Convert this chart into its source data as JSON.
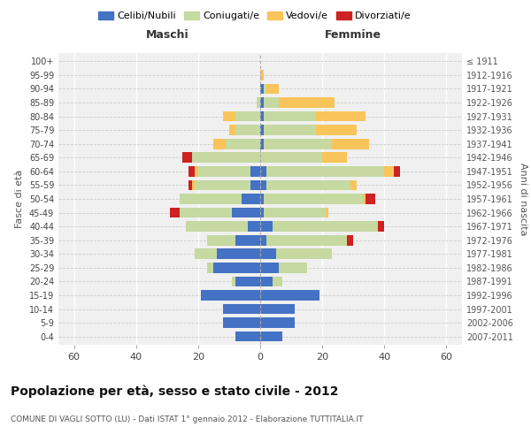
{
  "age_groups": [
    "100+",
    "95-99",
    "90-94",
    "85-89",
    "80-84",
    "75-79",
    "70-74",
    "65-69",
    "60-64",
    "55-59",
    "50-54",
    "45-49",
    "40-44",
    "35-39",
    "30-34",
    "25-29",
    "20-24",
    "15-19",
    "10-14",
    "5-9",
    "0-4"
  ],
  "birth_years": [
    "≤ 1911",
    "1912-1916",
    "1917-1921",
    "1922-1926",
    "1927-1931",
    "1932-1936",
    "1937-1941",
    "1942-1946",
    "1947-1951",
    "1952-1956",
    "1957-1961",
    "1962-1966",
    "1967-1971",
    "1972-1976",
    "1977-1981",
    "1982-1986",
    "1987-1991",
    "1992-1996",
    "1997-2001",
    "2002-2006",
    "2007-2011"
  ],
  "males": {
    "celibi": [
      0,
      0,
      0,
      0,
      0,
      0,
      0,
      0,
      3,
      3,
      6,
      9,
      4,
      8,
      14,
      15,
      8,
      19,
      12,
      12,
      8
    ],
    "coniugati": [
      0,
      0,
      0,
      1,
      8,
      8,
      11,
      22,
      17,
      18,
      20,
      17,
      20,
      9,
      7,
      2,
      1,
      0,
      0,
      0,
      0
    ],
    "vedovi": [
      0,
      0,
      0,
      0,
      4,
      2,
      4,
      0,
      1,
      1,
      0,
      0,
      0,
      0,
      0,
      0,
      0,
      0,
      0,
      0,
      0
    ],
    "divorziati": [
      0,
      0,
      0,
      0,
      0,
      0,
      0,
      3,
      2,
      1,
      0,
      3,
      0,
      0,
      0,
      0,
      0,
      0,
      0,
      0,
      0
    ]
  },
  "females": {
    "nubili": [
      0,
      0,
      1,
      1,
      1,
      1,
      1,
      0,
      2,
      2,
      1,
      1,
      4,
      2,
      5,
      6,
      4,
      19,
      11,
      11,
      7
    ],
    "coniugate": [
      0,
      0,
      1,
      5,
      17,
      17,
      22,
      20,
      38,
      27,
      32,
      20,
      34,
      26,
      18,
      9,
      3,
      0,
      0,
      0,
      0
    ],
    "vedove": [
      0,
      1,
      4,
      18,
      16,
      13,
      12,
      8,
      3,
      2,
      1,
      1,
      0,
      0,
      0,
      0,
      0,
      0,
      0,
      0,
      0
    ],
    "divorziate": [
      0,
      0,
      0,
      0,
      0,
      0,
      0,
      0,
      2,
      0,
      3,
      0,
      2,
      2,
      0,
      0,
      0,
      0,
      0,
      0,
      0
    ]
  },
  "color_celibi": "#4472c4",
  "color_coniugati": "#c5d9a0",
  "color_vedovi": "#f9c45a",
  "color_divorziati": "#cc2222",
  "xlim": 65,
  "title": "Popolazione per età, sesso e stato civile - 2012",
  "subtitle": "COMUNE DI VAGLI SOTTO (LU) - Dati ISTAT 1° gennaio 2012 - Elaborazione TUTTITALIA.IT",
  "ylabel": "Fasce di età",
  "ylabel_right": "Anni di nascita",
  "label_maschi": "Maschi",
  "label_femmine": "Femmine",
  "legend_celibi": "Celibi/Nubili",
  "legend_coniugati": "Coniugati/e",
  "legend_vedovi": "Vedovi/e",
  "legend_divorziati": "Divorziati/e",
  "bg_color": "#f0f0f0",
  "bar_height": 0.75
}
